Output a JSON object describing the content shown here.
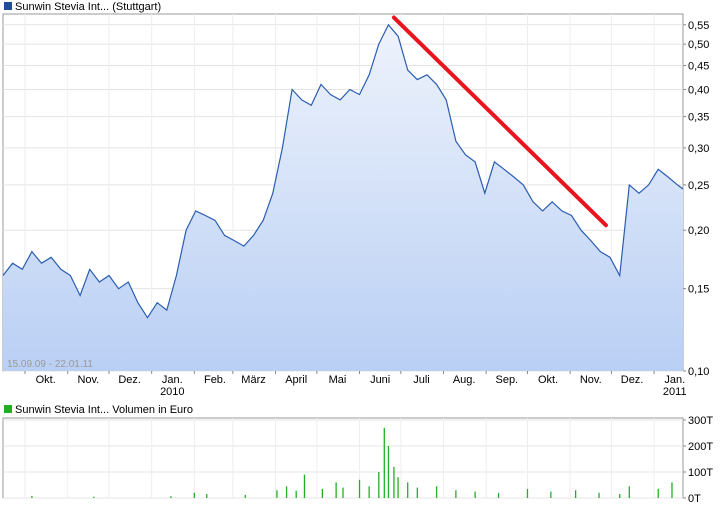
{
  "price_chart": {
    "legend_label": "Sunwin Stevia Int... (Stuttgart)",
    "legend_color": "#1f4e99",
    "date_range": "15.09.09 - 22.01.11",
    "line_color": "#2a5db0",
    "trend_line_color": "#e8141e",
    "y_ticks": [
      "0,55",
      "0,50",
      "0,45",
      "0,40",
      "0,35",
      "0,30",
      "0,25",
      "0,20",
      "0,15",
      "0,10"
    ],
    "x_ticks": [
      "Okt.",
      "Nov.",
      "Dez.",
      "Jan.",
      "Feb.",
      "März",
      "April",
      "Mai",
      "Juni",
      "Juli",
      "Aug.",
      "Sep.",
      "Okt.",
      "Nov.",
      "Dez.",
      "Jan."
    ],
    "year_labels": [
      "2010",
      "2011"
    ]
  },
  "volume_chart": {
    "legend_label": "Sunwin Stevia Int... Volumen in Euro",
    "legend_color": "#22b022",
    "y_ticks": [
      "300T",
      "200T",
      "100T",
      "0T"
    ]
  },
  "chart_data": [
    {
      "type": "line",
      "scale": "log",
      "ylim": [
        0.1,
        0.58
      ],
      "x_start": "2009-09-15",
      "x_end": "2011-01-22",
      "series": [
        {
          "name": "Sunwin Stevia Int... (Stuttgart)",
          "points": [
            [
              "2009-09-15",
              0.16
            ],
            [
              "2009-09-22",
              0.17
            ],
            [
              "2009-09-29",
              0.165
            ],
            [
              "2009-10-06",
              0.18
            ],
            [
              "2009-10-13",
              0.17
            ],
            [
              "2009-10-20",
              0.175
            ],
            [
              "2009-10-27",
              0.165
            ],
            [
              "2009-11-03",
              0.16
            ],
            [
              "2009-11-10",
              0.145
            ],
            [
              "2009-11-17",
              0.165
            ],
            [
              "2009-11-24",
              0.155
            ],
            [
              "2009-12-01",
              0.16
            ],
            [
              "2009-12-08",
              0.15
            ],
            [
              "2009-12-15",
              0.155
            ],
            [
              "2009-12-22",
              0.14
            ],
            [
              "2009-12-29",
              0.13
            ],
            [
              "2010-01-05",
              0.14
            ],
            [
              "2010-01-12",
              0.135
            ],
            [
              "2010-01-19",
              0.16
            ],
            [
              "2010-01-26",
              0.2
            ],
            [
              "2010-02-02",
              0.22
            ],
            [
              "2010-02-09",
              0.215
            ],
            [
              "2010-02-16",
              0.21
            ],
            [
              "2010-02-23",
              0.195
            ],
            [
              "2010-03-02",
              0.19
            ],
            [
              "2010-03-09",
              0.185
            ],
            [
              "2010-03-16",
              0.195
            ],
            [
              "2010-03-23",
              0.21
            ],
            [
              "2010-03-30",
              0.24
            ],
            [
              "2010-04-06",
              0.3
            ],
            [
              "2010-04-13",
              0.4
            ],
            [
              "2010-04-20",
              0.38
            ],
            [
              "2010-04-27",
              0.37
            ],
            [
              "2010-05-04",
              0.41
            ],
            [
              "2010-05-11",
              0.39
            ],
            [
              "2010-05-18",
              0.38
            ],
            [
              "2010-05-25",
              0.4
            ],
            [
              "2010-06-01",
              0.39
            ],
            [
              "2010-06-08",
              0.43
            ],
            [
              "2010-06-15",
              0.5
            ],
            [
              "2010-06-22",
              0.55
            ],
            [
              "2010-06-29",
              0.52
            ],
            [
              "2010-07-06",
              0.44
            ],
            [
              "2010-07-13",
              0.42
            ],
            [
              "2010-07-20",
              0.43
            ],
            [
              "2010-07-27",
              0.41
            ],
            [
              "2010-08-03",
              0.38
            ],
            [
              "2010-08-10",
              0.31
            ],
            [
              "2010-08-17",
              0.29
            ],
            [
              "2010-08-24",
              0.28
            ],
            [
              "2010-08-31",
              0.24
            ],
            [
              "2010-09-07",
              0.28
            ],
            [
              "2010-09-14",
              0.27
            ],
            [
              "2010-09-21",
              0.26
            ],
            [
              "2010-09-28",
              0.25
            ],
            [
              "2010-10-05",
              0.23
            ],
            [
              "2010-10-12",
              0.22
            ],
            [
              "2010-10-19",
              0.23
            ],
            [
              "2010-10-26",
              0.22
            ],
            [
              "2010-11-02",
              0.215
            ],
            [
              "2010-11-09",
              0.2
            ],
            [
              "2010-11-16",
              0.19
            ],
            [
              "2010-11-23",
              0.18
            ],
            [
              "2010-11-30",
              0.175
            ],
            [
              "2010-12-07",
              0.16
            ],
            [
              "2010-12-14",
              0.25
            ],
            [
              "2010-12-21",
              0.24
            ],
            [
              "2010-12-28",
              0.25
            ],
            [
              "2011-01-04",
              0.27
            ],
            [
              "2011-01-11",
              0.26
            ],
            [
              "2011-01-18",
              0.25
            ],
            [
              "2011-01-22",
              0.245
            ]
          ]
        },
        {
          "name": "",
          "points": [
            [
              "2010-06-26",
              0.57
            ],
            [
              "2010-11-27",
              0.205
            ]
          ]
        }
      ]
    },
    {
      "type": "bar",
      "ylim": [
        0,
        300000
      ],
      "series": [
        {
          "name": "Sunwin Stevia Int... Volumen in Euro",
          "points": [
            [
              "2009-10-06",
              8000
            ],
            [
              "2009-11-20",
              5000
            ],
            [
              "2010-01-15",
              7000
            ],
            [
              "2010-02-01",
              20000
            ],
            [
              "2010-02-10",
              15000
            ],
            [
              "2010-03-10",
              12000
            ],
            [
              "2010-04-02",
              30000
            ],
            [
              "2010-04-09",
              45000
            ],
            [
              "2010-04-16",
              28000
            ],
            [
              "2010-04-22",
              90000
            ],
            [
              "2010-05-05",
              35000
            ],
            [
              "2010-05-15",
              60000
            ],
            [
              "2010-05-20",
              40000
            ],
            [
              "2010-06-01",
              70000
            ],
            [
              "2010-06-08",
              45000
            ],
            [
              "2010-06-15",
              100000
            ],
            [
              "2010-06-19",
              270000
            ],
            [
              "2010-06-22",
              200000
            ],
            [
              "2010-06-26",
              120000
            ],
            [
              "2010-06-29",
              80000
            ],
            [
              "2010-07-06",
              60000
            ],
            [
              "2010-07-13",
              40000
            ],
            [
              "2010-07-27",
              45000
            ],
            [
              "2010-08-10",
              30000
            ],
            [
              "2010-08-24",
              25000
            ],
            [
              "2010-09-10",
              20000
            ],
            [
              "2010-10-01",
              35000
            ],
            [
              "2010-10-18",
              25000
            ],
            [
              "2010-11-05",
              30000
            ],
            [
              "2010-11-22",
              20000
            ],
            [
              "2010-12-07",
              15000
            ],
            [
              "2010-12-14",
              45000
            ],
            [
              "2011-01-04",
              35000
            ],
            [
              "2011-01-14",
              60000
            ]
          ]
        }
      ]
    }
  ]
}
